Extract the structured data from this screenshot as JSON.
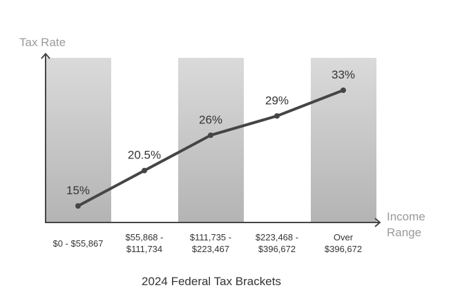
{
  "chart_data": {
    "type": "line",
    "title": "2024 Federal Tax Brackets",
    "ylabel": "Tax Rate",
    "xlabel": [
      "Income",
      "Range"
    ],
    "categories": [
      [
        "$0 - $55,867"
      ],
      [
        "$55,868 -",
        "$111,734"
      ],
      [
        "$111,735 -",
        "$223,467"
      ],
      [
        "$223,468 -",
        "$396,672"
      ],
      [
        "Over",
        "$396,672"
      ]
    ],
    "values": [
      15,
      20.5,
      26,
      29,
      33
    ],
    "data_labels": [
      "15%",
      "20.5%",
      "26%",
      "29%",
      "33%"
    ],
    "grid": false,
    "alternating_bands": true,
    "colors": {
      "line": "#454545",
      "band_top": "#dadada",
      "band_bottom": "#b4b4b4",
      "axis": "#444444",
      "axis_label": "#999999",
      "text": "#333333"
    }
  }
}
